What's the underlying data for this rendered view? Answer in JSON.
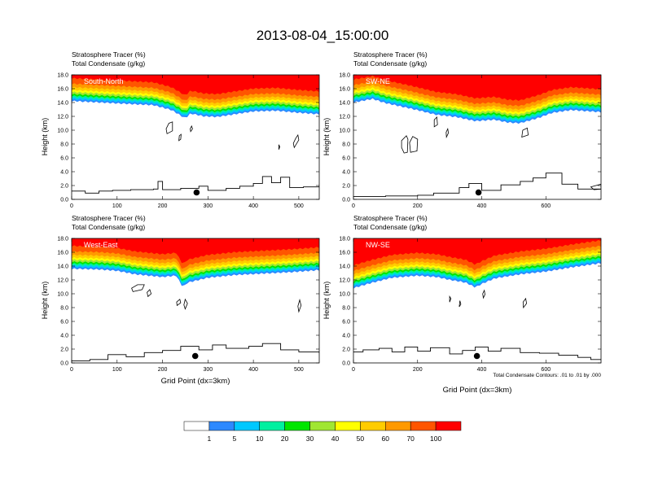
{
  "title": "2013-08-04_15:00:00",
  "panel_header_1": "Stratosphere Tracer   (%)",
  "panel_header_2": "Total Condensate   (g/kg)",
  "ylabel": "Height (km)",
  "xlabel": "Grid Point (dx=3km)",
  "contour_note": "Total Condensate Contours: .01 to .01 by .000",
  "colorbar": {
    "labels": [
      "1",
      "5",
      "10",
      "20",
      "30",
      "40",
      "50",
      "60",
      "70",
      "100"
    ],
    "colors": [
      "#ffffff",
      "#2d89ff",
      "#00c8ff",
      "#00f0a0",
      "#00e600",
      "#a0e632",
      "#ffff00",
      "#ffcc00",
      "#ff9900",
      "#ff5500",
      "#ff0000"
    ]
  },
  "chart_data": [
    {
      "type": "area",
      "panel_label": "South-North",
      "ylim": [
        0,
        18
      ],
      "yticks": [
        "0.0",
        "2.0",
        "4.0",
        "6.0",
        "8.0",
        "10.0",
        "12.0",
        "14.0",
        "16.0",
        "18.0"
      ],
      "xlim": [
        0,
        545
      ],
      "xticks": [
        0,
        100,
        200,
        300,
        400,
        500
      ],
      "xticklabels": [
        "0",
        "100",
        "200",
        "300",
        "400",
        "500"
      ],
      "tracer_base_km": [
        [
          0,
          14.2
        ],
        [
          60,
          14.0
        ],
        [
          120,
          13.8
        ],
        [
          180,
          13.6
        ],
        [
          220,
          12.9
        ],
        [
          240,
          12.1
        ],
        [
          250,
          11.7
        ],
        [
          262,
          12.4
        ],
        [
          290,
          12.0
        ],
        [
          320,
          11.9
        ],
        [
          360,
          12.3
        ],
        [
          400,
          12.7
        ],
        [
          450,
          12.8
        ],
        [
          500,
          12.5
        ],
        [
          545,
          12.3
        ]
      ],
      "terrain_km": [
        [
          0,
          1.2
        ],
        [
          30,
          0.9
        ],
        [
          60,
          1.2
        ],
        [
          90,
          1.3
        ],
        [
          130,
          1.4
        ],
        [
          180,
          1.5
        ],
        [
          190,
          2.6
        ],
        [
          200,
          1.4
        ],
        [
          240,
          1.6
        ],
        [
          280,
          1.9
        ],
        [
          300,
          1.3
        ],
        [
          340,
          1.6
        ],
        [
          370,
          1.9
        ],
        [
          400,
          2.3
        ],
        [
          420,
          3.3
        ],
        [
          440,
          2.4
        ],
        [
          460,
          3.2
        ],
        [
          480,
          1.7
        ],
        [
          510,
          1.8
        ],
        [
          545,
          1.9
        ]
      ],
      "marker": {
        "x": 275,
        "y_km": 1.0
      },
      "condensate_contours": [
        [
          [
            210,
            9.5
          ],
          [
            222,
            9.9
          ],
          [
            222,
            11.2
          ],
          [
            214,
            11.0
          ],
          [
            208,
            10.2
          ]
        ],
        [
          [
            236,
            8.5
          ],
          [
            240,
            8.7
          ],
          [
            241,
            9.4
          ],
          [
            237,
            9.2
          ]
        ],
        [
          [
            262,
            9.8
          ],
          [
            266,
            10.2
          ],
          [
            264,
            10.6
          ],
          [
            261,
            10.2
          ]
        ],
        [
          [
            490,
            7.5
          ],
          [
            500,
            8.6
          ],
          [
            498,
            9.3
          ],
          [
            493,
            8.8
          ],
          [
            488,
            8.1
          ]
        ],
        [
          [
            456,
            7.2
          ],
          [
            458,
            7.6
          ],
          [
            456,
            7.9
          ]
        ]
      ]
    },
    {
      "type": "area",
      "panel_label": "SW-NE",
      "ylim": [
        0,
        18
      ],
      "yticks": [
        "0.0",
        "2.0",
        "4.0",
        "6.0",
        "8.0",
        "10.0",
        "12.0",
        "14.0",
        "16.0",
        "18.0"
      ],
      "xlim": [
        0,
        772
      ],
      "xticks": [
        0,
        200,
        400,
        600
      ],
      "xticklabels": [
        "0",
        "200",
        "400",
        "600"
      ],
      "tracer_base_km": [
        [
          0,
          14.0
        ],
        [
          60,
          14.5
        ],
        [
          100,
          13.9
        ],
        [
          180,
          13.1
        ],
        [
          260,
          12.2
        ],
        [
          320,
          11.9
        ],
        [
          380,
          11.3
        ],
        [
          440,
          11.5
        ],
        [
          480,
          11.1
        ],
        [
          520,
          11.0
        ],
        [
          580,
          11.8
        ],
        [
          620,
          12.5
        ],
        [
          680,
          12.9
        ],
        [
          772,
          12.6
        ]
      ],
      "terrain_km": [
        [
          0,
          0.4
        ],
        [
          100,
          0.5
        ],
        [
          200,
          0.6
        ],
        [
          250,
          0.9
        ],
        [
          330,
          1.7
        ],
        [
          360,
          2.3
        ],
        [
          400,
          1.3
        ],
        [
          460,
          2.1
        ],
        [
          520,
          2.6
        ],
        [
          560,
          3.1
        ],
        [
          600,
          3.8
        ],
        [
          650,
          2.2
        ],
        [
          700,
          1.5
        ],
        [
          772,
          1.6
        ]
      ],
      "marker": {
        "x": 390,
        "y_km": 1.0
      },
      "condensate_contours": [
        [
          [
            150,
            8.5
          ],
          [
            165,
            9.2
          ],
          [
            170,
            8.7
          ],
          [
            168,
            6.8
          ],
          [
            158,
            6.7
          ],
          [
            150,
            7.5
          ]
        ],
        [
          [
            178,
            6.8
          ],
          [
            198,
            7.0
          ],
          [
            200,
            8.7
          ],
          [
            185,
            9.1
          ],
          [
            175,
            8.2
          ]
        ],
        [
          [
            252,
            10.5
          ],
          [
            262,
            10.8
          ],
          [
            260,
            11.9
          ],
          [
            252,
            11.5
          ]
        ],
        [
          [
            290,
            9.0
          ],
          [
            296,
            9.6
          ],
          [
            294,
            10.2
          ],
          [
            289,
            9.7
          ]
        ],
        [
          [
            525,
            9.0
          ],
          [
            545,
            9.3
          ],
          [
            542,
            10.3
          ],
          [
            528,
            10.0
          ]
        ],
        [
          [
            740,
            1.8
          ],
          [
            772,
            2.2
          ],
          [
            772,
            1.5
          ],
          [
            750,
            1.4
          ]
        ]
      ]
    },
    {
      "type": "area",
      "panel_label": "West-East",
      "ylim": [
        0,
        18
      ],
      "yticks": [
        "0.0",
        "2.0",
        "4.0",
        "6.0",
        "8.0",
        "10.0",
        "12.0",
        "14.0",
        "16.0",
        "18.0"
      ],
      "xlim": [
        0,
        545
      ],
      "xticks": [
        0,
        100,
        200,
        300,
        400,
        500
      ],
      "xticklabels": [
        "0",
        "100",
        "200",
        "300",
        "400",
        "500"
      ],
      "tracer_base_km": [
        [
          0,
          13.6
        ],
        [
          60,
          13.5
        ],
        [
          100,
          13.3
        ],
        [
          140,
          12.8
        ],
        [
          200,
          12.4
        ],
        [
          230,
          12.6
        ],
        [
          245,
          10.9
        ],
        [
          255,
          11.6
        ],
        [
          300,
          12.3
        ],
        [
          360,
          12.7
        ],
        [
          420,
          12.9
        ],
        [
          480,
          13.1
        ],
        [
          545,
          13.4
        ]
      ],
      "terrain_km": [
        [
          0,
          0.3
        ],
        [
          40,
          0.5
        ],
        [
          80,
          1.2
        ],
        [
          120,
          0.9
        ],
        [
          160,
          1.5
        ],
        [
          200,
          1.8
        ],
        [
          240,
          2.4
        ],
        [
          280,
          1.9
        ],
        [
          310,
          2.6
        ],
        [
          340,
          2.1
        ],
        [
          390,
          2.4
        ],
        [
          420,
          2.8
        ],
        [
          460,
          1.9
        ],
        [
          500,
          1.6
        ],
        [
          545,
          1.4
        ]
      ],
      "marker": {
        "x": 272,
        "y_km": 1.0
      },
      "condensate_contours": [
        [
          [
            135,
            10.3
          ],
          [
            155,
            10.6
          ],
          [
            160,
            11.3
          ],
          [
            145,
            11.3
          ],
          [
            132,
            10.8
          ]
        ],
        [
          [
            168,
            9.6
          ],
          [
            175,
            10.0
          ],
          [
            172,
            10.6
          ],
          [
            166,
            10.2
          ]
        ],
        [
          [
            232,
            8.3
          ],
          [
            240,
            8.7
          ],
          [
            238,
            9.2
          ],
          [
            231,
            8.8
          ]
        ],
        [
          [
            250,
            7.8
          ],
          [
            255,
            8.6
          ],
          [
            250,
            9.2
          ],
          [
            247,
            8.4
          ]
        ],
        [
          [
            500,
            7.4
          ],
          [
            505,
            8.3
          ],
          [
            502,
            9.1
          ],
          [
            498,
            8.2
          ]
        ]
      ]
    },
    {
      "type": "area",
      "panel_label": "NW-SE",
      "ylim": [
        0,
        18
      ],
      "yticks": [
        "0.0",
        "2.0",
        "4.0",
        "6.0",
        "8.0",
        "10.0",
        "12.0",
        "14.0",
        "16.0",
        "18.0"
      ],
      "xlim": [
        0,
        772
      ],
      "xticks": [
        0,
        200,
        400,
        600
      ],
      "xticklabels": [
        "0",
        "200",
        "400",
        "600"
      ],
      "tracer_base_km": [
        [
          0,
          10.8
        ],
        [
          60,
          11.6
        ],
        [
          120,
          12.3
        ],
        [
          200,
          12.6
        ],
        [
          260,
          12.4
        ],
        [
          300,
          12.0
        ],
        [
          350,
          11.6
        ],
        [
          380,
          10.9
        ],
        [
          400,
          11.4
        ],
        [
          440,
          12.2
        ],
        [
          520,
          12.8
        ],
        [
          600,
          13.2
        ],
        [
          680,
          13.8
        ],
        [
          740,
          14.2
        ],
        [
          772,
          14.4
        ]
      ],
      "terrain_km": [
        [
          0,
          1.6
        ],
        [
          30,
          1.9
        ],
        [
          80,
          2.1
        ],
        [
          120,
          1.6
        ],
        [
          160,
          2.3
        ],
        [
          200,
          1.7
        ],
        [
          240,
          2.2
        ],
        [
          300,
          1.3
        ],
        [
          340,
          1.8
        ],
        [
          380,
          2.3
        ],
        [
          420,
          1.7
        ],
        [
          460,
          2.1
        ],
        [
          520,
          1.5
        ],
        [
          580,
          1.4
        ],
        [
          640,
          1.1
        ],
        [
          700,
          0.8
        ],
        [
          740,
          0.5
        ],
        [
          772,
          0.4
        ]
      ],
      "marker": {
        "x": 385,
        "y_km": 1.0
      },
      "condensate_contours": [
        [
          [
            405,
            9.4
          ],
          [
            410,
            9.9
          ],
          [
            408,
            10.5
          ],
          [
            403,
            10.0
          ]
        ],
        [
          [
            530,
            8.0
          ],
          [
            540,
            8.6
          ],
          [
            537,
            9.3
          ],
          [
            529,
            8.8
          ]
        ],
        [
          [
            330,
            8.1
          ],
          [
            335,
            8.5
          ],
          [
            332,
            9.0
          ]
        ],
        [
          [
            300,
            8.8
          ],
          [
            304,
            9.3
          ],
          [
            300,
            9.6
          ]
        ]
      ]
    }
  ]
}
